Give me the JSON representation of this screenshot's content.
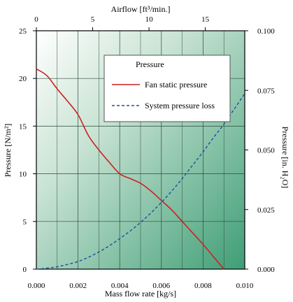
{
  "chart_data": {
    "type": "line",
    "x": [
      0.0,
      0.0005,
      0.001,
      0.0015,
      0.002,
      0.0025,
      0.003,
      0.0035,
      0.004,
      0.0045,
      0.005,
      0.0055,
      0.006,
      0.0065,
      0.007,
      0.0075,
      0.008,
      0.0085,
      0.009
    ],
    "series": [
      {
        "name": "Fan static pressure",
        "color": "#cc2222",
        "style": "solid",
        "values": [
          21.0,
          20.3,
          18.9,
          17.6,
          16.2,
          14.0,
          12.5,
          11.2,
          10.0,
          9.5,
          9.0,
          8.2,
          7.2,
          6.2,
          5.0,
          3.8,
          2.6,
          1.3,
          0.0
        ]
      },
      {
        "name": "System pressure loss",
        "color": "#1f4e9c",
        "style": "dashed",
        "values": [
          0.0,
          0.1,
          0.25,
          0.5,
          0.8,
          1.25,
          1.8,
          2.45,
          3.2,
          4.0,
          4.9,
          5.9,
          7.0,
          8.2,
          9.5,
          10.9,
          12.3,
          13.8,
          15.2
        ]
      }
    ],
    "x_series_extra": {
      "System pressure loss": {
        "x": [
          0.0095,
          0.01
        ],
        "values": [
          16.8,
          18.4
        ]
      }
    },
    "xlabel": "Mass flow rate [kg/s]",
    "ylabel": "Pressure [N/m²]",
    "xlim": [
      0.0,
      0.01
    ],
    "ylim": [
      0,
      25
    ],
    "x_ticks": [
      "0.000",
      "0.002",
      "0.004",
      "0.006",
      "0.008",
      "0.010"
    ],
    "y_ticks": [
      "0",
      "5",
      "10",
      "15",
      "20",
      "25"
    ],
    "top_axis": {
      "label": "Airflow [ft³/min.]",
      "lim": [
        0,
        18.5
      ],
      "ticks": [
        "0",
        "5",
        "10",
        "15"
      ]
    },
    "right_axis": {
      "label": "Pressure [in. H₂O]",
      "lim": [
        0,
        0.1
      ],
      "ticks": [
        "0.000",
        "0.025",
        "0.050",
        "0.075",
        "0.100"
      ]
    },
    "legend": {
      "title": "Pressure",
      "placement": "top-right",
      "entries": [
        "Fan static pressure",
        "System pressure loss"
      ]
    },
    "grid": true
  }
}
